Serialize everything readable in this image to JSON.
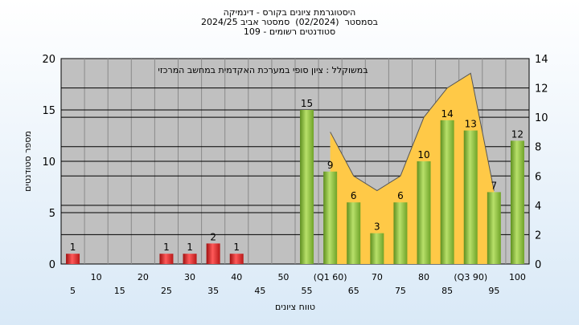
{
  "chart_data": {
    "type": "bar",
    "title_lines": [
      "היסטוגרמת ציונים בקורס - דינמיקה",
      "בסמסטר  (02/2024)  סמסטר אביב 2024/25",
      "סטודנטים רשומים - 109"
    ],
    "annotation": "במשוקלל : ציון סופי במערכת האקדמית במחשב המרכזי",
    "xlabel": "טווח ציונים",
    "ylabel": "מספר סטודנטים",
    "ylim": [
      0,
      20
    ],
    "y2lim": [
      0,
      14
    ],
    "yticks": [
      "0",
      "5",
      "10",
      "15",
      "20"
    ],
    "y2ticks": [
      "0",
      "2",
      "4",
      "6",
      "8",
      "10",
      "12",
      "14"
    ],
    "categories": [
      "5",
      "10",
      "15",
      "20",
      "25",
      "30",
      "35",
      "40",
      "45",
      "50",
      "55",
      "(Q1 60)",
      "65",
      "70",
      "75",
      "80",
      "85",
      "(Q3 90)",
      "95",
      "100"
    ],
    "values": [
      1,
      0,
      0,
      0,
      1,
      1,
      2,
      1,
      0,
      0,
      15,
      9,
      6,
      3,
      6,
      10,
      14,
      13,
      7,
      12
    ],
    "value_labels": [
      "1",
      "",
      "",
      "",
      "1",
      "1",
      "2",
      "1",
      "",
      "",
      "15",
      "9",
      "6",
      "3",
      "6",
      "10",
      "14",
      "13",
      "7",
      "12"
    ],
    "fail_threshold": 55,
    "colors": {
      "fail_bar": "#e03030",
      "pass_bar": "#8cc63f",
      "area": "#ffc947",
      "plot_bg": "#c0c0c0"
    },
    "area_series": [
      {
        "x": "(Q1 60)",
        "value": 9
      },
      {
        "x": "65",
        "value": 6
      },
      {
        "x": "70",
        "value": 5
      },
      {
        "x": "75",
        "value": 6
      },
      {
        "x": "80",
        "value": 10
      },
      {
        "x": "85",
        "value": 12
      },
      {
        "x": "(Q3 90)",
        "value": 13
      },
      {
        "x": "95",
        "value": 5
      }
    ]
  }
}
